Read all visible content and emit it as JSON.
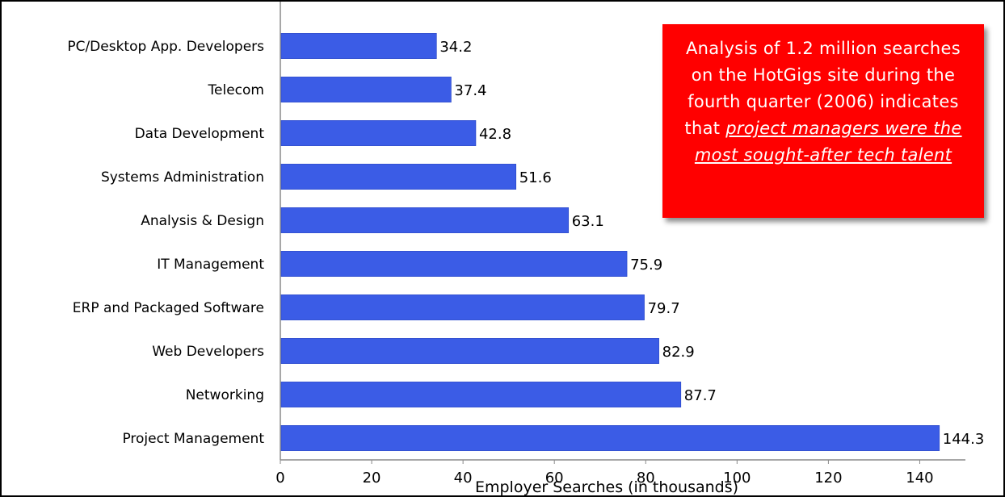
{
  "chart_data": {
    "type": "bar",
    "orientation": "horizontal",
    "categories": [
      "PC/Desktop App. Developers",
      "Telecom",
      "Data Development",
      "Systems Administration",
      "Analysis & Design",
      "IT Management",
      "ERP and Packaged Software",
      "Web Developers",
      "Networking",
      "Project Management"
    ],
    "values": [
      34.2,
      37.4,
      42.8,
      51.6,
      63.1,
      75.9,
      79.7,
      82.9,
      87.7,
      144.3
    ],
    "value_labels": [
      "34.2",
      "37.4",
      "42.8",
      "51.6",
      "63.1",
      "75.9",
      "79.7",
      "82.9",
      "87.7",
      "144.3"
    ],
    "xlabel": "Employer Searches (in thousands)",
    "ylabel": "",
    "title": "",
    "xlim": [
      0,
      150
    ],
    "xticks": [
      "0",
      "20",
      "40",
      "60",
      "80",
      "100",
      "120",
      "140"
    ],
    "grid": false,
    "bar_color": "#3b5ce6"
  },
  "annotation": {
    "text_plain": "Analysis of 1.2 million searches on the HotGigs site during the fourth quarter (2006) indicates that",
    "text_emphasis": "project managers were the most sought-after tech talent",
    "background": "#ff0000"
  }
}
